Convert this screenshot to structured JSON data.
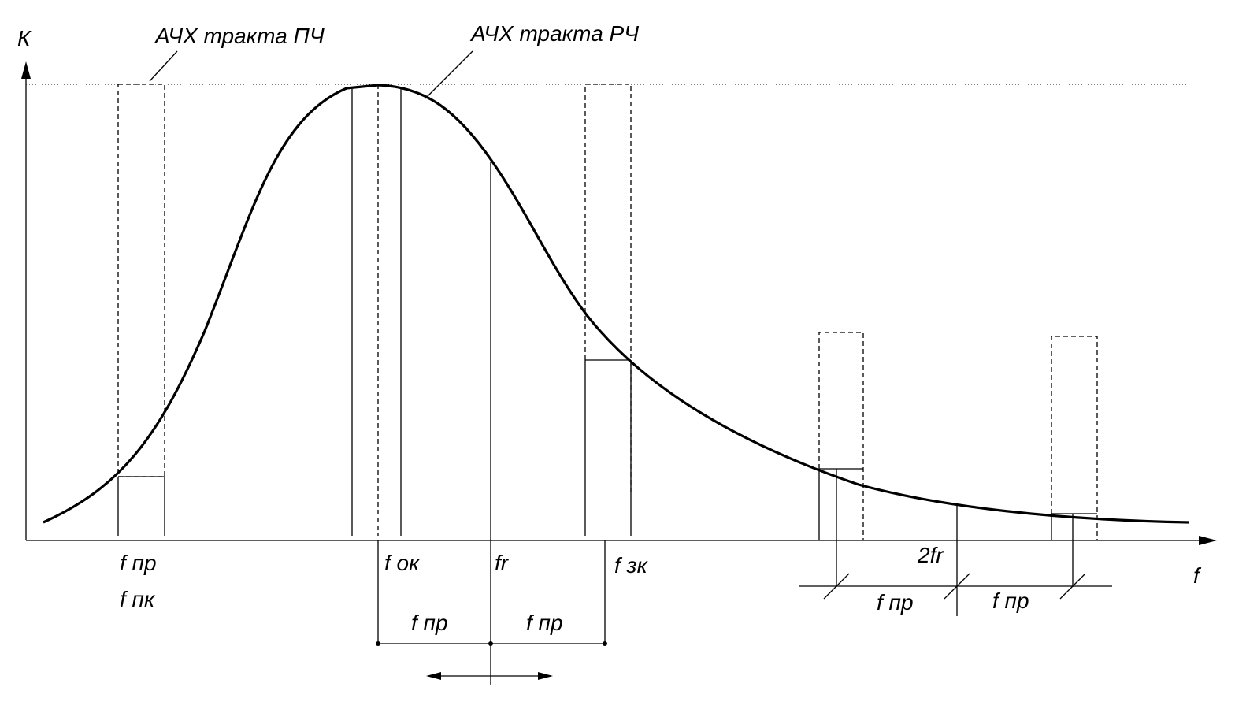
{
  "axes": {
    "y_label": "К",
    "x_label": "f"
  },
  "curves": [
    {
      "label": "АЧХ тракта ПЧ"
    },
    {
      "label": "АЧХ тракта РЧ"
    }
  ],
  "frequencies": [
    "f пр",
    "f пк",
    "f ок",
    "fr",
    "f зк",
    "2fr"
  ],
  "spans": [
    "f пр",
    "f пр",
    "f пр",
    "f пр"
  ]
}
